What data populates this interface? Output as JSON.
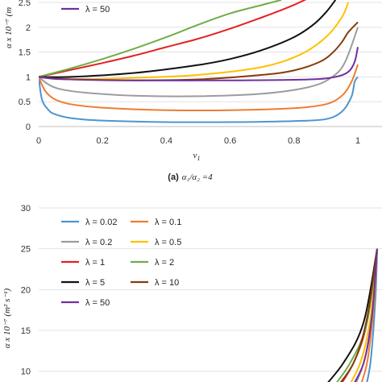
{
  "chart_data": [
    {
      "type": "line",
      "caption_label": "(a)",
      "caption_text": "α₁/α₂ =4",
      "xlabel": "v",
      "xlabel_sub": "1",
      "ylabel": "α x 10⁻⁷ (m",
      "xlim": [
        0,
        1
      ],
      "ylim": [
        0,
        2.5
      ],
      "x_ticks": [
        "0",
        "0.2",
        "0.4",
        "0.6",
        "0.8",
        "1"
      ],
      "y_ticks": [
        "0",
        "0.5",
        "1",
        "1.5",
        "2",
        "2.5"
      ],
      "legend": [
        {
          "label": "λ = 50",
          "color": "#7030a0"
        }
      ],
      "series": [
        {
          "lambda": 0.02,
          "color": "#4f94cd",
          "x": [
            0,
            0.01,
            0.03,
            0.05,
            0.1,
            0.2,
            0.4,
            0.6,
            0.8,
            0.9,
            0.95,
            0.98,
            0.99,
            1.0
          ],
          "y": [
            1,
            0.55,
            0.34,
            0.25,
            0.17,
            0.12,
            0.09,
            0.09,
            0.11,
            0.15,
            0.3,
            0.6,
            0.9,
            1.0
          ]
        },
        {
          "lambda": 0.1,
          "color": "#ed7d31",
          "x": [
            0,
            0.02,
            0.05,
            0.1,
            0.2,
            0.4,
            0.6,
            0.8,
            0.9,
            0.95,
            0.98,
            1.0
          ],
          "y": [
            1,
            0.72,
            0.55,
            0.45,
            0.38,
            0.33,
            0.33,
            0.37,
            0.45,
            0.62,
            0.9,
            1.25
          ]
        },
        {
          "lambda": 0.2,
          "color": "#9c9c9c",
          "x": [
            0,
            0.03,
            0.07,
            0.15,
            0.3,
            0.5,
            0.7,
            0.85,
            0.92,
            0.96,
            1.0
          ],
          "y": [
            1,
            0.85,
            0.75,
            0.68,
            0.62,
            0.61,
            0.66,
            0.8,
            1.0,
            1.3,
            2.0
          ]
        },
        {
          "lambda": 0.5,
          "color": "#ffc000",
          "x": [
            0,
            0.05,
            0.15,
            0.3,
            0.5,
            0.7,
            0.82,
            0.9,
            0.95,
            0.97
          ],
          "y": [
            1,
            0.98,
            0.96,
            0.98,
            1.04,
            1.2,
            1.45,
            1.8,
            2.2,
            2.5
          ]
        },
        {
          "lambda": 1,
          "color": "#e32222",
          "x": [
            0,
            0.1,
            0.2,
            0.3,
            0.4,
            0.5,
            0.6,
            0.7,
            0.75,
            0.8,
            0.85
          ],
          "y": [
            1,
            1.14,
            1.28,
            1.43,
            1.6,
            1.77,
            1.97,
            2.2,
            2.32,
            2.45,
            2.6
          ]
        },
        {
          "lambda": 2,
          "color": "#70ad47",
          "x": [
            0,
            0.1,
            0.2,
            0.3,
            0.4,
            0.5,
            0.6,
            0.7,
            0.76
          ],
          "y": [
            1,
            1.17,
            1.36,
            1.57,
            1.8,
            2.05,
            2.28,
            2.45,
            2.55
          ]
        },
        {
          "lambda": 5,
          "color": "#111111",
          "x": [
            0,
            0.1,
            0.3,
            0.5,
            0.6,
            0.7,
            0.8,
            0.86,
            0.9,
            0.93
          ],
          "y": [
            1,
            1.0,
            1.08,
            1.24,
            1.36,
            1.54,
            1.8,
            2.05,
            2.3,
            2.55
          ]
        },
        {
          "lambda": 10,
          "color": "#843c0c",
          "x": [
            0,
            0.1,
            0.3,
            0.5,
            0.7,
            0.8,
            0.88,
            0.92,
            0.95,
            0.97,
            1.0
          ],
          "y": [
            1,
            0.95,
            0.93,
            0.95,
            1.04,
            1.13,
            1.3,
            1.48,
            1.7,
            1.9,
            2.1
          ]
        },
        {
          "lambda": 50,
          "color": "#7030a0",
          "x": [
            0,
            0.02,
            0.05,
            0.1,
            0.3,
            0.6,
            0.85,
            0.93,
            0.97,
            0.99,
            1.0
          ],
          "y": [
            1,
            0.98,
            0.96,
            0.95,
            0.93,
            0.93,
            0.95,
            1.0,
            1.1,
            1.3,
            1.6
          ]
        }
      ]
    },
    {
      "type": "line",
      "ylabel": "α x 10⁻⁷ (m² s⁻¹)",
      "xlim": [
        0,
        1
      ],
      "ylim": [
        0,
        30
      ],
      "y_ticks": [
        "10",
        "15",
        "20",
        "25",
        "30"
      ],
      "legend": [
        {
          "label": "λ = 0.02",
          "color": "#4f94cd"
        },
        {
          "label": "λ = 0.1",
          "color": "#ed7d31"
        },
        {
          "label": "λ = 0.2",
          "color": "#9c9c9c"
        },
        {
          "label": "λ = 0.5",
          "color": "#ffc000"
        },
        {
          "label": "λ = 1",
          "color": "#e32222"
        },
        {
          "label": "λ = 2",
          "color": "#70ad47"
        },
        {
          "label": "λ = 5",
          "color": "#111111"
        },
        {
          "label": "λ = 10",
          "color": "#843c0c"
        },
        {
          "label": "λ = 50",
          "color": "#7030a0"
        }
      ],
      "series": [
        {
          "lambda": 0.02,
          "color": "#4f94cd",
          "x": [
            0.96,
            0.98,
            0.995,
            1.0
          ],
          "y": [
            7,
            11,
            19,
            25
          ]
        },
        {
          "lambda": 0.1,
          "color": "#ed7d31",
          "x": [
            0.94,
            0.97,
            0.99,
            1.0
          ],
          "y": [
            7,
            11,
            18,
            25
          ]
        },
        {
          "lambda": 0.2,
          "color": "#9c9c9c",
          "x": [
            0.92,
            0.96,
            0.985,
            1.0
          ],
          "y": [
            7,
            11,
            17,
            25
          ]
        },
        {
          "lambda": 0.5,
          "color": "#ffc000",
          "x": [
            0.9,
            0.95,
            0.98,
            1.0
          ],
          "y": [
            7,
            11,
            16.5,
            25
          ]
        },
        {
          "lambda": 1,
          "color": "#e32222",
          "x": [
            0.87,
            0.93,
            0.97,
            1.0
          ],
          "y": [
            7,
            11,
            16,
            25
          ]
        },
        {
          "lambda": 2,
          "color": "#70ad47",
          "x": [
            0.85,
            0.92,
            0.97,
            1.0
          ],
          "y": [
            7,
            11,
            16,
            25
          ]
        },
        {
          "lambda": 5,
          "color": "#111111",
          "x": [
            0.82,
            0.9,
            0.96,
            1.0
          ],
          "y": [
            7,
            11,
            16,
            25
          ]
        },
        {
          "lambda": 10,
          "color": "#843c0c",
          "x": [
            0.86,
            0.93,
            0.97,
            1.0
          ],
          "y": [
            7,
            11,
            16.5,
            25
          ]
        },
        {
          "lambda": 50,
          "color": "#7030a0",
          "x": [
            0.91,
            0.96,
            0.985,
            1.0
          ],
          "y": [
            7,
            11,
            17,
            25
          ]
        }
      ]
    }
  ]
}
